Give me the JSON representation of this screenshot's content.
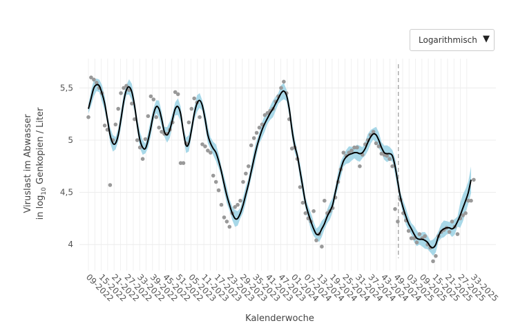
{
  "scale_dropdown": {
    "selected": "Logarithmisch",
    "arrow_icon": "dropdown-triangle-icon"
  },
  "colors": {
    "band": "#a8d8e8",
    "line": "#000000",
    "points": "#999999",
    "grid": "#ececec",
    "vline": "#999999"
  },
  "chart_data": {
    "type": "line",
    "xlabel": "Kalenderwoche",
    "ylabel_line1": "Viruslast im Abwasser",
    "ylabel_line2_pre": "in log",
    "ylabel_line2_sub": "10",
    "ylabel_line2_post": " Genkopien / Liter",
    "ylim": [
      3.75,
      5.8
    ],
    "yticks": [
      {
        "value": 4,
        "label": "4"
      },
      {
        "value": 4.5,
        "label": "4,5"
      },
      {
        "value": 5,
        "label": "5"
      },
      {
        "value": 5.5,
        "label": "5,5"
      }
    ],
    "x_start_week": "2022-W09",
    "weeks_total": 180,
    "xticks": [
      "09-2022",
      "15-2022",
      "21-2022",
      "27-2022",
      "33-2022",
      "39-2022",
      "45-2022",
      "51-2022",
      "05-2023",
      "11-2023",
      "17-2023",
      "23-2023",
      "29-2023",
      "35-2023",
      "41-2023",
      "47-2023",
      "01-2024",
      "07-2024",
      "13-2024",
      "19-2024",
      "25-2024",
      "31-2024",
      "37-2024",
      "43-2024",
      "49-2024",
      "03-2025",
      "09-2025",
      "15-2025",
      "21-2025",
      "27-2025",
      "33-2025"
    ],
    "vline_week": "2024-W50",
    "grid": true,
    "series": [
      {
        "values": [
          5.3,
          5.4,
          5.5,
          5.53,
          5.52,
          5.45,
          5.35,
          5.2,
          5.05,
          4.97,
          4.97,
          5.05,
          5.2,
          5.37,
          5.48,
          5.51,
          5.46,
          5.33,
          5.15,
          5.0,
          4.93,
          4.92,
          5.0,
          5.12,
          5.25,
          5.32,
          5.3,
          5.2,
          5.08,
          5.05,
          5.1,
          5.2,
          5.3,
          5.32,
          5.25,
          5.08,
          4.95,
          4.97,
          5.1,
          5.25,
          5.35,
          5.38,
          5.33,
          5.2,
          5.05,
          4.97,
          4.92,
          4.88,
          4.8,
          4.7,
          4.58,
          4.47,
          4.38,
          4.3,
          4.25,
          4.25,
          4.3,
          4.38,
          4.48,
          4.58,
          4.7,
          4.82,
          4.93,
          5.02,
          5.1,
          5.16,
          5.21,
          5.26,
          5.3,
          5.35,
          5.4,
          5.45,
          5.47,
          5.43,
          5.3,
          5.1,
          4.95,
          4.85,
          4.7,
          4.55,
          4.4,
          4.3,
          4.22,
          4.15,
          4.1,
          4.1,
          4.15,
          4.2,
          4.27,
          4.32,
          4.38,
          4.5,
          4.62,
          4.72,
          4.8,
          4.84,
          4.86,
          4.87,
          4.88,
          4.88,
          4.87,
          4.88,
          4.92,
          4.98,
          5.03,
          5.06,
          5.05,
          5.0,
          4.93,
          4.88,
          4.87,
          4.87,
          4.85,
          4.75,
          4.6,
          4.45,
          4.35,
          4.27,
          4.2,
          4.15,
          4.1,
          4.06,
          4.05,
          4.05,
          4.04,
          4.02,
          3.98,
          3.97,
          4.0,
          4.08,
          4.13,
          4.15,
          4.16,
          4.16,
          4.15,
          4.17,
          4.22,
          4.28,
          4.35,
          4.42,
          4.5,
          4.62
        ],
        "points": [
          [
            0,
            5.22
          ],
          [
            1,
            5.6
          ],
          [
            2,
            5.58
          ],
          [
            3,
            5.55
          ],
          [
            4,
            5.5
          ],
          [
            5,
            5.45
          ],
          [
            6,
            5.14
          ],
          [
            7,
            5.1
          ],
          [
            8,
            4.57
          ],
          [
            9,
            5.0
          ],
          [
            10,
            5.15
          ],
          [
            11,
            5.3
          ],
          [
            12,
            5.45
          ],
          [
            13,
            5.5
          ],
          [
            14,
            5.52
          ],
          [
            15,
            5.48
          ],
          [
            16,
            5.35
          ],
          [
            17,
            5.2
          ],
          [
            18,
            5.0
          ],
          [
            19,
            4.93
          ],
          [
            20,
            4.82
          ],
          [
            21,
            5.01
          ],
          [
            22,
            5.23
          ],
          [
            23,
            5.42
          ],
          [
            24,
            5.39
          ],
          [
            25,
            5.22
          ],
          [
            26,
            5.12
          ],
          [
            27,
            5.08
          ],
          [
            28,
            5.06
          ],
          [
            29,
            5.06
          ],
          [
            30,
            5.1
          ],
          [
            31,
            5.17
          ],
          [
            32,
            5.46
          ],
          [
            33,
            5.44
          ],
          [
            34,
            4.78
          ],
          [
            35,
            4.78
          ],
          [
            36,
            4.97
          ],
          [
            37,
            5.17
          ],
          [
            38,
            5.3
          ],
          [
            39,
            5.4
          ],
          [
            40,
            5.36
          ],
          [
            41,
            5.22
          ],
          [
            42,
            4.96
          ],
          [
            43,
            4.94
          ],
          [
            44,
            4.9
          ],
          [
            45,
            4.88
          ],
          [
            46,
            4.66
          ],
          [
            47,
            4.6
          ],
          [
            48,
            4.52
          ],
          [
            49,
            4.38
          ],
          [
            50,
            4.26
          ],
          [
            51,
            4.22
          ],
          [
            52,
            4.17
          ],
          [
            53,
            4.3
          ],
          [
            54,
            4.36
          ],
          [
            55,
            4.38
          ],
          [
            56,
            4.42
          ],
          [
            57,
            4.6
          ],
          [
            58,
            4.68
          ],
          [
            59,
            4.75
          ],
          [
            60,
            4.95
          ],
          [
            61,
            5.02
          ],
          [
            62,
            5.07
          ],
          [
            63,
            5.12
          ],
          [
            64,
            5.15
          ],
          [
            65,
            5.24
          ],
          [
            66,
            5.26
          ],
          [
            67,
            5.28
          ],
          [
            68,
            5.3
          ],
          [
            69,
            5.37
          ],
          [
            70,
            5.42
          ],
          [
            71,
            5.5
          ],
          [
            72,
            5.56
          ],
          [
            73,
            5.45
          ],
          [
            74,
            5.2
          ],
          [
            75,
            4.92
          ],
          [
            76,
            4.93
          ],
          [
            77,
            4.82
          ],
          [
            78,
            4.55
          ],
          [
            79,
            4.4
          ],
          [
            80,
            4.3
          ],
          [
            81,
            4.25
          ],
          [
            82,
            4.22
          ],
          [
            83,
            4.32
          ],
          [
            84,
            4.04
          ],
          [
            85,
            4.1
          ],
          [
            86,
            3.98
          ],
          [
            87,
            4.42
          ],
          [
            88,
            4.3
          ],
          [
            89,
            4.32
          ],
          [
            90,
            4.35
          ],
          [
            91,
            4.45
          ],
          [
            92,
            4.6
          ],
          [
            93,
            4.72
          ],
          [
            94,
            4.88
          ],
          [
            95,
            4.85
          ],
          [
            96,
            4.88
          ],
          [
            97,
            4.9
          ],
          [
            98,
            4.93
          ],
          [
            99,
            4.93
          ],
          [
            100,
            4.75
          ],
          [
            101,
            4.86
          ],
          [
            102,
            4.96
          ],
          [
            103,
            5.0
          ],
          [
            104,
            5.05
          ],
          [
            105,
            5.08
          ],
          [
            106,
            4.97
          ],
          [
            107,
            4.94
          ],
          [
            108,
            4.87
          ],
          [
            109,
            4.86
          ],
          [
            110,
            4.85
          ],
          [
            111,
            4.82
          ],
          [
            112,
            4.75
          ],
          [
            113,
            4.34
          ],
          [
            114,
            4.22
          ],
          [
            115,
            4.43
          ],
          [
            116,
            4.3
          ],
          [
            117,
            4.23
          ],
          [
            118,
            4.13
          ],
          [
            119,
            4.06
          ],
          [
            120,
            4.06
          ],
          [
            121,
            4.02
          ],
          [
            122,
            4.1
          ],
          [
            123,
            4.06
          ],
          [
            124,
            4.08
          ],
          [
            125,
            4.0
          ],
          [
            126,
            3.97
          ],
          [
            127,
            3.84
          ],
          [
            128,
            3.89
          ],
          [
            129,
            4.08
          ],
          [
            130,
            4.12
          ],
          [
            131,
            4.14
          ],
          [
            132,
            4.16
          ],
          [
            133,
            4.12
          ],
          [
            134,
            4.22
          ],
          [
            135,
            4.17
          ],
          [
            136,
            4.1
          ],
          [
            137,
            4.25
          ],
          [
            138,
            4.28
          ],
          [
            139,
            4.3
          ],
          [
            140,
            4.42
          ],
          [
            141,
            4.42
          ],
          [
            142,
            4.62
          ]
        ]
      }
    ]
  }
}
